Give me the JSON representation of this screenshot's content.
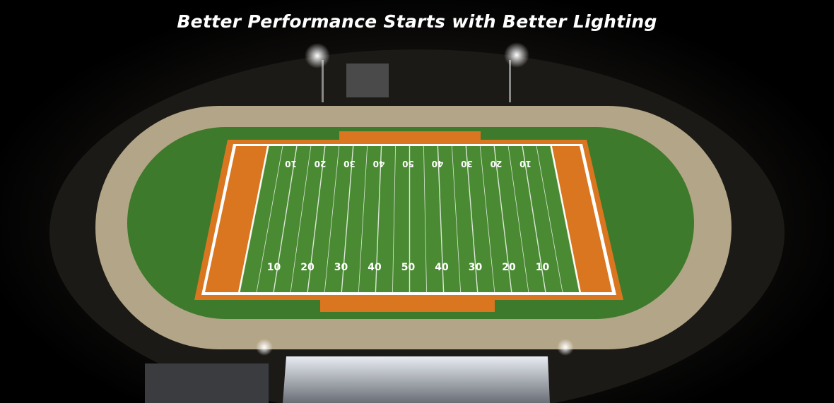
{
  "headline": "Better Performance Starts with Better Lighting",
  "field": {
    "yard_numbers_far": [
      "10",
      "20",
      "30",
      "40",
      "50",
      "40",
      "30",
      "20",
      "10"
    ],
    "yard_numbers_near": [
      "10",
      "20",
      "30",
      "40",
      "50",
      "40",
      "30",
      "20",
      "10"
    ]
  },
  "colors": {
    "turf": "#3f7d2c",
    "endzone": "#d9761f",
    "track": "#b9a98a",
    "background": "#000000"
  }
}
